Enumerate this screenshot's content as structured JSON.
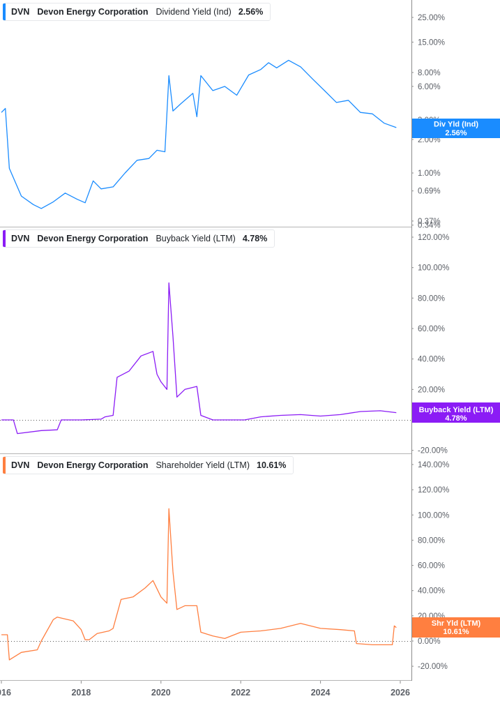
{
  "colors": {
    "dividend": "#1a8cff",
    "buyback": "#8b1cf5",
    "shareholder": "#ff7f40",
    "axis": "#8c8c8c",
    "text": "#5b5f66"
  },
  "panels": [
    {
      "legend": {
        "ticker": "DVN",
        "company": "Devon Energy Corporation",
        "metric": "Dividend Yield (Ind)",
        "value": "2.56%"
      },
      "badge": {
        "label": "Div Yld (Ind)",
        "value": "2.56%"
      }
    },
    {
      "legend": {
        "ticker": "DVN",
        "company": "Devon Energy Corporation",
        "metric": "Buyback Yield (LTM)",
        "value": "4.78%"
      },
      "badge": {
        "label": "Buyback Yield (LTM)",
        "value": "4.78%"
      }
    },
    {
      "legend": {
        "ticker": "DVN",
        "company": "Devon Energy Corporation",
        "metric": "Shareholder Yield (LTM)",
        "value": "10.61%"
      },
      "badge": {
        "label": "Shr Yld (LTM)",
        "value": "10.61%"
      }
    }
  ],
  "x_axis": {
    "ticks": [
      "2016",
      "2018",
      "2020",
      "2022",
      "2024",
      "2026"
    ]
  },
  "chart_data": [
    {
      "type": "line",
      "title": "DVN Devon Energy Corporation Dividend Yield (Ind)",
      "scale": "log",
      "ylabel": "",
      "yticks": [
        "25.00%",
        "15.00%",
        "8.00%",
        "6.00%",
        "3.00%",
        "2.00%",
        "1.00%",
        "0.69%",
        "0.37%",
        "0.34%"
      ],
      "ylim": [
        0.34,
        30
      ],
      "x": [
        2016.0,
        2016.1,
        2016.2,
        2016.5,
        2016.8,
        2017.0,
        2017.3,
        2017.6,
        2017.9,
        2018.1,
        2018.3,
        2018.5,
        2018.8,
        2019.1,
        2019.4,
        2019.7,
        2019.9,
        2020.1,
        2020.2,
        2020.3,
        2020.5,
        2020.8,
        2020.9,
        2021.0,
        2021.3,
        2021.6,
        2021.9,
        2022.2,
        2022.5,
        2022.7,
        2022.9,
        2023.2,
        2023.5,
        2023.8,
        2024.1,
        2024.4,
        2024.7,
        2025.0,
        2025.3,
        2025.6,
        2025.9
      ],
      "series": [
        {
          "name": "Dividend Yield (Ind)",
          "values": [
            3.5,
            3.8,
            1.1,
            0.62,
            0.52,
            0.48,
            0.55,
            0.66,
            0.58,
            0.54,
            0.85,
            0.72,
            0.75,
            1.0,
            1.3,
            1.35,
            1.6,
            1.55,
            7.5,
            3.6,
            4.2,
            5.2,
            3.2,
            7.5,
            5.5,
            6.0,
            5.0,
            7.6,
            8.5,
            9.8,
            8.8,
            10.3,
            9.0,
            7.0,
            5.5,
            4.3,
            4.5,
            3.5,
            3.4,
            2.8,
            2.56
          ]
        }
      ]
    },
    {
      "type": "line",
      "title": "DVN Devon Energy Corporation Buyback Yield (LTM)",
      "ylabel": "",
      "yticks": [
        "120.00%",
        "100.00%",
        "80.00%",
        "60.00%",
        "40.00%",
        "20.00%",
        "0.00%",
        "-20.00%"
      ],
      "ylim": [
        -20,
        120
      ],
      "x": [
        2016.0,
        2016.3,
        2016.4,
        2017.0,
        2017.4,
        2017.5,
        2018.0,
        2018.5,
        2018.6,
        2018.8,
        2018.9,
        2019.2,
        2019.5,
        2019.8,
        2019.9,
        2020.0,
        2020.15,
        2020.2,
        2020.3,
        2020.4,
        2020.6,
        2020.9,
        2021.0,
        2021.3,
        2022.1,
        2022.5,
        2023.0,
        2023.5,
        2024.0,
        2024.5,
        2025.0,
        2025.5,
        2025.9
      ],
      "series": [
        {
          "name": "Buyback Yield (LTM)",
          "values": [
            0.0,
            0.0,
            -9.0,
            -7.0,
            -6.5,
            0.0,
            0.0,
            0.5,
            2.0,
            3.0,
            28.0,
            32.0,
            42.0,
            45.0,
            30.0,
            25.0,
            20.0,
            90.0,
            55.0,
            15.0,
            20.0,
            22.0,
            3.0,
            0.0,
            0.0,
            2.0,
            3.0,
            3.5,
            2.5,
            3.5,
            5.5,
            6.0,
            4.78
          ]
        }
      ]
    },
    {
      "type": "line",
      "title": "DVN Devon Energy Corporation Shareholder Yield (LTM)",
      "ylabel": "",
      "yticks": [
        "140.00%",
        "120.00%",
        "100.00%",
        "80.00%",
        "60.00%",
        "40.00%",
        "20.00%",
        "0.00%",
        "-20.00%"
      ],
      "ylim": [
        -20,
        140
      ],
      "x": [
        2016.0,
        2016.15,
        2016.2,
        2016.5,
        2016.9,
        2017.0,
        2017.3,
        2017.4,
        2017.8,
        2018.0,
        2018.1,
        2018.2,
        2018.4,
        2018.7,
        2018.8,
        2019.0,
        2019.3,
        2019.6,
        2019.8,
        2020.0,
        2020.15,
        2020.2,
        2020.3,
        2020.4,
        2020.6,
        2020.9,
        2021.0,
        2021.3,
        2021.6,
        2022.0,
        2022.5,
        2023.0,
        2023.5,
        2024.0,
        2024.5,
        2024.85,
        2024.9,
        2025.3,
        2025.8,
        2025.85,
        2025.9
      ],
      "series": [
        {
          "name": "Shareholder Yield (LTM)",
          "values": [
            5.0,
            5.0,
            -15.0,
            -9.0,
            -7.0,
            0.0,
            17.0,
            19.0,
            16.0,
            9.0,
            1.0,
            1.0,
            6.0,
            8.0,
            10.0,
            33.0,
            35.0,
            42.0,
            48.0,
            35.0,
            30.0,
            105.0,
            55.0,
            25.0,
            28.0,
            28.0,
            7.0,
            4.0,
            2.0,
            7.0,
            8.0,
            10.0,
            14.0,
            10.0,
            9.0,
            8.0,
            -2.0,
            -3.0,
            -3.0,
            12.0,
            10.61
          ]
        }
      ]
    }
  ]
}
